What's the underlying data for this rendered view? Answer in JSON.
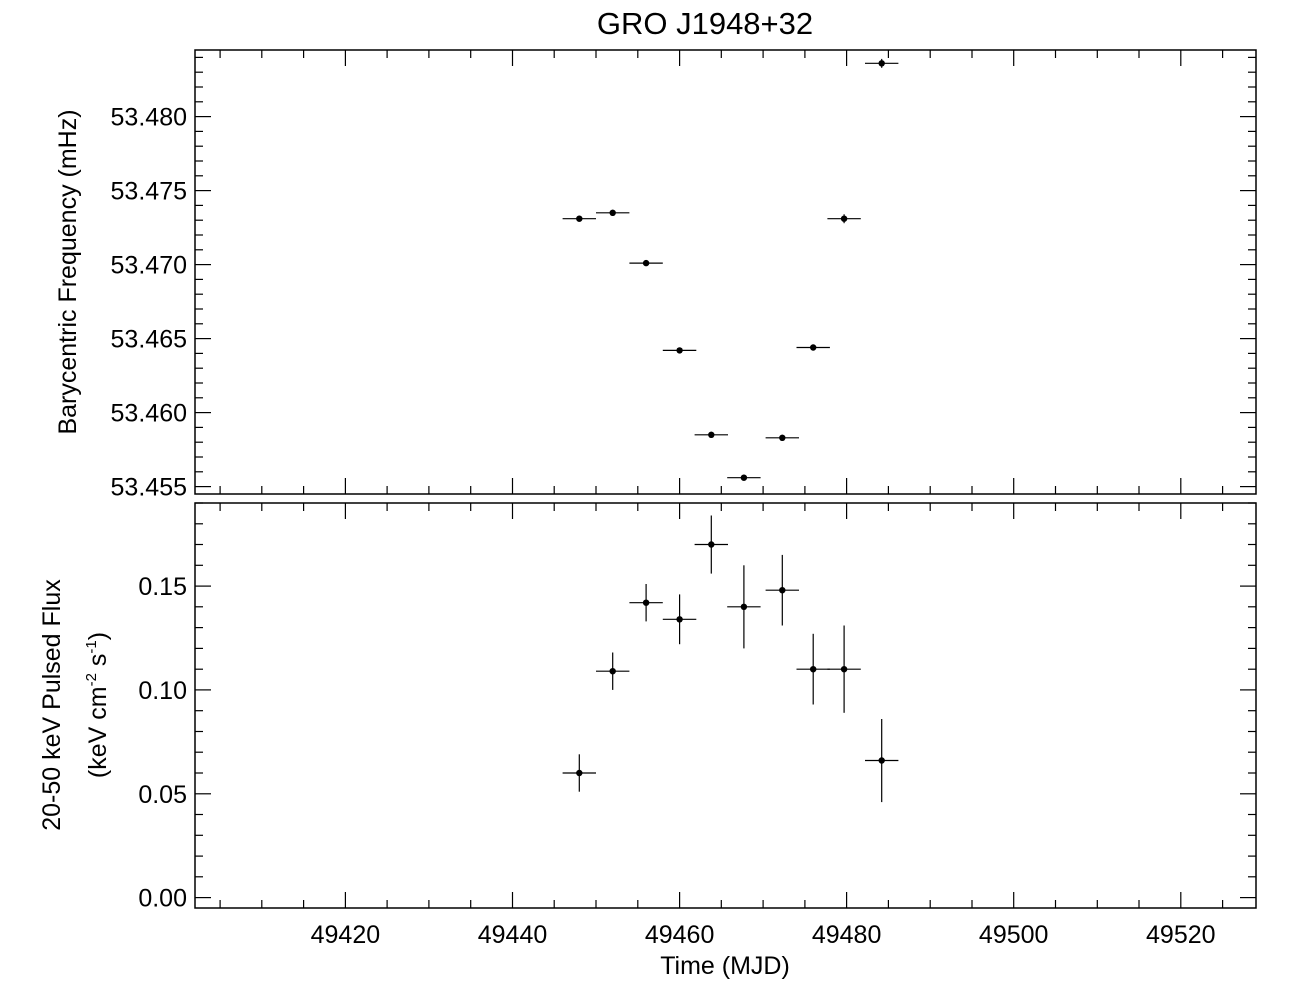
{
  "chart_data": [
    {
      "type": "scatter",
      "title": "GRO J1948+32",
      "ylabel": "Barycentric Frequency (mHz)",
      "xlim": [
        49402,
        49529
      ],
      "ylim": [
        53.4545,
        53.4845
      ],
      "x_ticks": [
        49420,
        49440,
        49460,
        49480,
        49500,
        49520
      ],
      "y_ticks": [
        53.455,
        53.46,
        53.465,
        53.47,
        53.475,
        53.48
      ],
      "y_tick_labels": [
        "53.455",
        "53.460",
        "53.465",
        "53.470",
        "53.475",
        "53.480"
      ],
      "series": [
        {
          "x": [
            49448.0,
            49452.0,
            49456.0,
            49460.0,
            49463.8,
            49467.7,
            49472.3,
            49476.0,
            49479.7,
            49484.2
          ],
          "x_err": [
            2.0,
            2.0,
            2.0,
            2.0,
            2.0,
            2.0,
            2.0,
            2.0,
            2.0,
            2.0
          ],
          "y": [
            53.4731,
            53.4735,
            53.4701,
            53.4642,
            53.4585,
            53.4556,
            53.4583,
            53.4644,
            53.4731,
            53.4836
          ],
          "y_err": [
            0.0002,
            0.0002,
            0.0002,
            0.0002,
            0.0002,
            0.0002,
            0.0002,
            0.0002,
            0.0003,
            0.0003
          ]
        }
      ]
    },
    {
      "type": "scatter",
      "xlabel": "Time (MJD)",
      "ylabel_line1": "20-50 keV Pulsed Flux",
      "ylabel_unit": {
        "open": "(keV cm",
        "sup1": "-2",
        "mid": " s",
        "sup2": "-1",
        "close": ")"
      },
      "xlim": [
        49402,
        49529
      ],
      "ylim": [
        -0.005,
        0.19
      ],
      "x_ticks": [
        49420,
        49440,
        49460,
        49480,
        49500,
        49520
      ],
      "x_tick_labels": [
        "49420",
        "49440",
        "49460",
        "49480",
        "49500",
        "49520"
      ],
      "y_ticks": [
        0.0,
        0.05,
        0.1,
        0.15
      ],
      "y_tick_labels": [
        "0.00",
        "0.05",
        "0.10",
        "0.15"
      ],
      "series": [
        {
          "x": [
            49448.0,
            49452.0,
            49456.0,
            49460.0,
            49463.8,
            49467.7,
            49472.3,
            49476.0,
            49479.7,
            49484.2
          ],
          "x_err": [
            2.0,
            2.0,
            2.0,
            2.0,
            2.0,
            2.0,
            2.0,
            2.0,
            2.0,
            2.0
          ],
          "y": [
            0.06,
            0.109,
            0.142,
            0.134,
            0.17,
            0.14,
            0.148,
            0.11,
            0.11,
            0.066
          ],
          "y_err": [
            0.009,
            0.009,
            0.009,
            0.012,
            0.014,
            0.02,
            0.017,
            0.017,
            0.021,
            0.02
          ]
        }
      ]
    }
  ]
}
